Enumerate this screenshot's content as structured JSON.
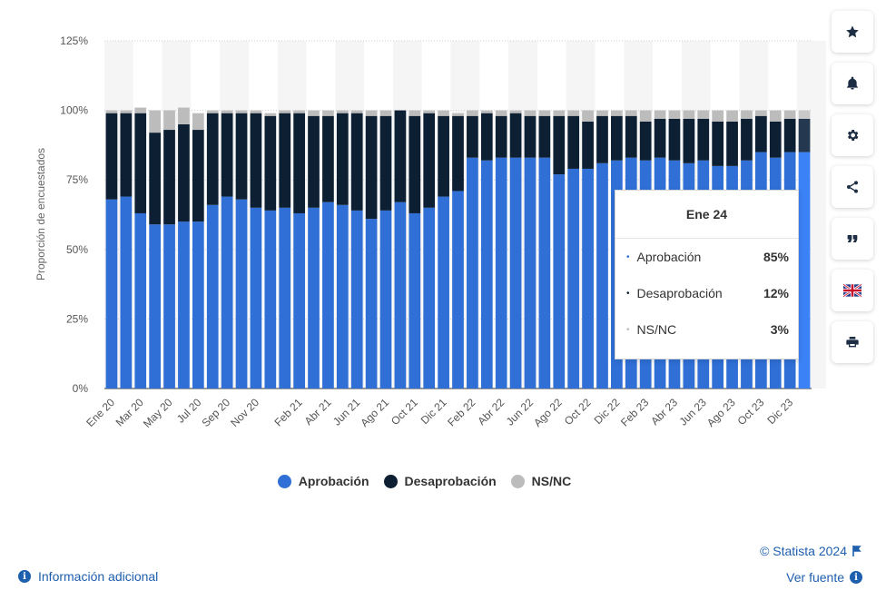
{
  "chart_data": {
    "type": "bar",
    "stacked": true,
    "ylabel": "Proporción de encuestados",
    "ylim": [
      0,
      125
    ],
    "yticks": [
      "0%",
      "25%",
      "50%",
      "75%",
      "100%",
      "125%"
    ],
    "categories": [
      "Ene 20",
      "Feb 20",
      "Mar 20",
      "Abr 20",
      "May 20",
      "Jun 20",
      "Jul 20",
      "Ago 20",
      "Sep 20",
      "Oct 20",
      "Nov 20",
      "Dic 20",
      "Ene 21",
      "Feb 21",
      "Mar 21",
      "Abr 21",
      "May 21",
      "Jun 21",
      "Jul 21",
      "Ago 21",
      "Sep 21",
      "Oct 21",
      "Nov 21",
      "Dic 21",
      "Ene 22",
      "Feb 22",
      "Mar 22",
      "Abr 22",
      "May 22",
      "Jun 22",
      "Jul 22",
      "Ago 22",
      "Sep 22",
      "Oct 22",
      "Nov 22",
      "Dic 22",
      "Ene 23",
      "Feb 23",
      "Mar 23",
      "Abr 23",
      "May 23",
      "Jun 23",
      "Jul 23",
      "Ago 23",
      "Sep 23",
      "Oct 23",
      "Nov 23",
      "Dic 23",
      "Ene 24"
    ],
    "xtick_labels": [
      "Ene 20",
      "Mar 20",
      "May 20",
      "Jul 20",
      "Sep 20",
      "Nov 20",
      "Feb 21",
      "Abr 21",
      "Jun 21",
      "Ago 21",
      "Oct 21",
      "Dic 21",
      "Feb 22",
      "Abr 22",
      "Jun 22",
      "Ago 22",
      "Oct 22",
      "Dic 22",
      "Feb 23",
      "Abr 23",
      "Jun 23",
      "Ago 23",
      "Oct 23",
      "Dic 23"
    ],
    "series": [
      {
        "name": "Aprobación",
        "color": "#2f6fd6",
        "values": [
          68,
          69,
          63,
          59,
          59,
          60,
          60,
          66,
          69,
          68,
          65,
          64,
          65,
          63,
          65,
          67,
          66,
          64,
          61,
          64,
          67,
          63,
          65,
          69,
          71,
          83,
          82,
          83,
          83,
          83,
          83,
          77,
          79,
          79,
          81,
          82,
          83,
          82,
          83,
          82,
          81,
          82,
          80,
          80,
          82,
          85,
          83,
          85,
          85
        ]
      },
      {
        "name": "Desaprobación",
        "color": "#0d1f33",
        "values": [
          31,
          30,
          36,
          33,
          34,
          35,
          33,
          33,
          30,
          31,
          34,
          34,
          34,
          36,
          33,
          31,
          33,
          35,
          37,
          34,
          33,
          35,
          34,
          29,
          27,
          15,
          17,
          15,
          16,
          15,
          15,
          21,
          19,
          17,
          17,
          16,
          15,
          14,
          14,
          15,
          16,
          15,
          16,
          16,
          15,
          13,
          13,
          12,
          12
        ]
      },
      {
        "name": "NS/NC",
        "color": "#bcbcbc",
        "values": [
          1,
          1,
          2,
          8,
          7,
          6,
          6,
          1,
          1,
          1,
          1,
          1,
          1,
          1,
          2,
          2,
          1,
          1,
          2,
          2,
          0,
          2,
          1,
          2,
          1,
          2,
          1,
          2,
          1,
          2,
          2,
          2,
          2,
          4,
          2,
          2,
          2,
          4,
          3,
          3,
          3,
          3,
          4,
          4,
          3,
          2,
          4,
          3,
          3
        ]
      }
    ],
    "grid": true,
    "legend_position": "bottom-center",
    "highlighted_index": 48
  },
  "tooltip": {
    "title": "Ene 24",
    "rows": [
      {
        "bullet": "•",
        "name": "Aprobación",
        "value": "85%",
        "color": "#2f6fd6"
      },
      {
        "bullet": "•",
        "name": "Desaprobación",
        "value": "12%",
        "color": "#0d1f33"
      },
      {
        "bullet": "•",
        "name": "NS/NC",
        "value": "3%",
        "color": "#bcbcbc"
      }
    ]
  },
  "legend": [
    {
      "name": "Aprobación",
      "color": "#2f6fd6"
    },
    {
      "name": "Desaprobación",
      "color": "#0d1f33"
    },
    {
      "name": "NS/NC",
      "color": "#bcbcbc"
    }
  ],
  "sidebar": [
    "star-icon",
    "bell-icon",
    "gear-icon",
    "share-icon",
    "quote-icon",
    "flag-uk-icon",
    "print-icon"
  ],
  "footer": {
    "credit": "© Statista 2024",
    "source": "Ver fuente",
    "info": "Información adicional"
  }
}
